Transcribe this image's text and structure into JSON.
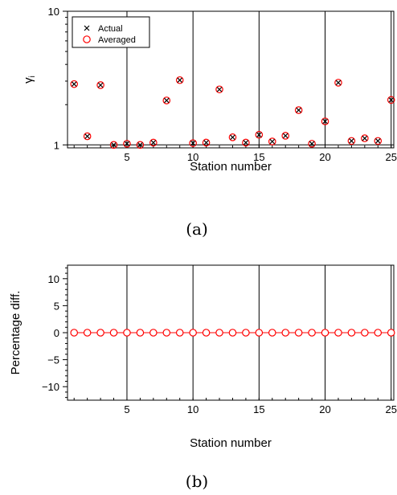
{
  "chart_data": [
    {
      "type": "scatter",
      "caption": "(a)",
      "xlabel": "Station number",
      "ylabel": "γ",
      "ylabel_subscript": "i",
      "yscale": "log",
      "xlim": [
        0.5,
        25.2
      ],
      "ylim": [
        0.95,
        10
      ],
      "x_ticks": [
        5,
        10,
        15,
        20,
        25
      ],
      "y_ticks": [
        1,
        10
      ],
      "grid": "vertical lines at x ticks",
      "legend": {
        "position": "top-left",
        "entries": [
          "Actual",
          "Averaged"
        ]
      },
      "colors": {
        "actual": "#000000",
        "averaged": "#ff0000"
      },
      "series": [
        {
          "name": "Actual",
          "marker": "x",
          "x": [
            1,
            2,
            3,
            4,
            5,
            6,
            7,
            8,
            9,
            10,
            11,
            12,
            13,
            14,
            15,
            16,
            17,
            18,
            19,
            20,
            21,
            22,
            23,
            24,
            25
          ],
          "values": [
            2.85,
            1.16,
            2.8,
            1.0,
            1.02,
            1.0,
            1.04,
            2.15,
            3.05,
            1.03,
            1.04,
            2.6,
            1.14,
            1.04,
            1.19,
            1.06,
            1.17,
            1.82,
            1.02,
            1.5,
            2.92,
            1.07,
            1.12,
            1.07,
            2.17
          ]
        },
        {
          "name": "Averaged",
          "marker": "circle",
          "x": [
            1,
            2,
            3,
            4,
            5,
            6,
            7,
            8,
            9,
            10,
            11,
            12,
            13,
            14,
            15,
            16,
            17,
            18,
            19,
            20,
            21,
            22,
            23,
            24,
            25
          ],
          "values": [
            2.85,
            1.16,
            2.8,
            1.0,
            1.02,
            1.0,
            1.04,
            2.15,
            3.05,
            1.03,
            1.04,
            2.6,
            1.14,
            1.04,
            1.19,
            1.06,
            1.17,
            1.82,
            1.02,
            1.5,
            2.92,
            1.07,
            1.12,
            1.07,
            2.17
          ]
        }
      ]
    },
    {
      "type": "scatter",
      "caption": "(b)",
      "xlabel": "Station number",
      "ylabel": "Percentage diff.",
      "xlim": [
        0.5,
        25.2
      ],
      "ylim": [
        -12.5,
        12.5
      ],
      "x_ticks": [
        5,
        10,
        15,
        20,
        25
      ],
      "y_ticks": [
        -10,
        -5,
        0,
        5,
        10
      ],
      "y_tick_labels": [
        "−10",
        "−5",
        "0",
        "5",
        "10"
      ],
      "grid": "vertical lines at x ticks",
      "colors": {
        "line": "#ff0000",
        "marker": "#ff0000"
      },
      "series": [
        {
          "marker": "circle",
          "x": [
            1,
            2,
            3,
            4,
            5,
            6,
            7,
            8,
            9,
            10,
            11,
            12,
            13,
            14,
            15,
            16,
            17,
            18,
            19,
            20,
            21,
            22,
            23,
            24,
            25
          ],
          "values": [
            0,
            0,
            0,
            0,
            0,
            0,
            0,
            0,
            0,
            0,
            0,
            0,
            0,
            0,
            0,
            0,
            0,
            0,
            0,
            0,
            0,
            0,
            0,
            0,
            0
          ]
        }
      ]
    }
  ]
}
